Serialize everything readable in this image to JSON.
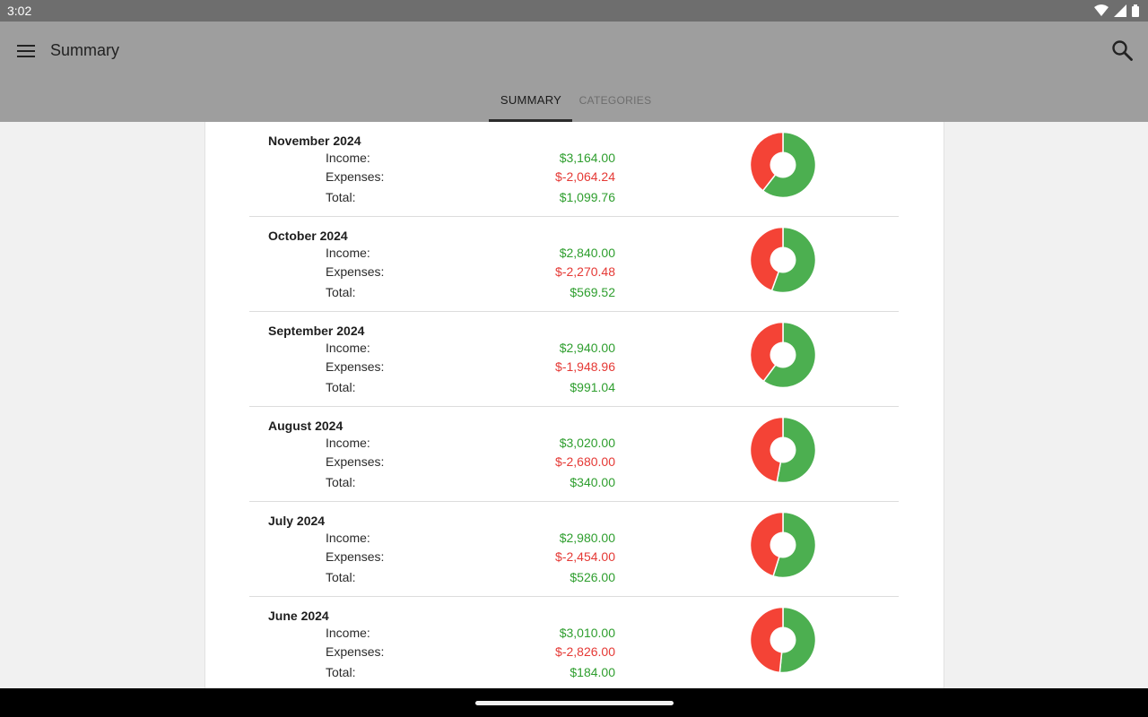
{
  "status_bar": {
    "time": "3:02"
  },
  "app_bar": {
    "title": "Summary"
  },
  "tabs": [
    {
      "label": "SUMMARY",
      "selected": true
    },
    {
      "label": "CATEGORIES",
      "selected": false
    }
  ],
  "labels": {
    "income": "Income:",
    "expenses": "Expenses:",
    "total": "Total:"
  },
  "colors": {
    "income": "#4caf50",
    "expenses": "#f44336",
    "positive_text": "#2e9e2e",
    "negative_text": "#e53935"
  },
  "months": [
    {
      "title": "November 2024",
      "income": "$3,164.00",
      "expenses": "$-2,064.24",
      "total": "$1,099.76"
    },
    {
      "title": "October 2024",
      "income": "$2,840.00",
      "expenses": "$-2,270.48",
      "total": "$569.52"
    },
    {
      "title": "September 2024",
      "income": "$2,940.00",
      "expenses": "$-1,948.96",
      "total": "$991.04"
    },
    {
      "title": "August 2024",
      "income": "$3,020.00",
      "expenses": "$-2,680.00",
      "total": "$340.00"
    },
    {
      "title": "July 2024",
      "income": "$2,980.00",
      "expenses": "$-2,454.00",
      "total": "$526.00"
    },
    {
      "title": "June 2024",
      "income": "$3,010.00",
      "expenses": "$-2,826.00",
      "total": "$184.00"
    }
  ],
  "icons": {
    "menu": "menu-icon",
    "search": "search-icon",
    "wifi": "wifi-icon",
    "signal": "signal-icon",
    "battery": "battery-icon"
  }
}
